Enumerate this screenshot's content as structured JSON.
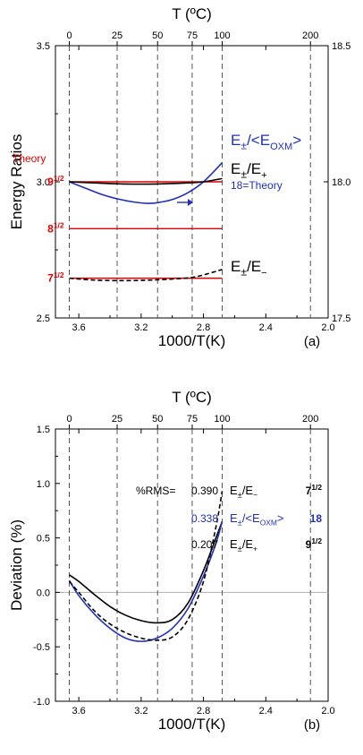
{
  "chart_data": [
    {
      "type": "line",
      "panel_label": "(a)",
      "title": "",
      "xlabel": "1000/T(K)",
      "ylabel": "Energy Ratios",
      "top_axis_label": "T (ºC)",
      "xlim": [
        3.75,
        2.0
      ],
      "ylim": [
        2.5,
        3.5
      ],
      "y2lim": [
        17.5,
        18.5
      ],
      "x_ticks": [
        "3.6",
        "3.2",
        "2.8",
        "2.4",
        "2.0"
      ],
      "y_ticks": [
        "2.5",
        "3.0",
        "3.5"
      ],
      "y2_ticks": [
        "17.5",
        "18.0",
        "18.5"
      ],
      "top_ticks": [
        "0",
        "25",
        "50",
        "75",
        "100",
        "200"
      ],
      "dashed_temperature_lines_C": [
        0,
        25,
        50,
        75,
        100,
        200
      ],
      "theory_lines": [
        {
          "label": "9",
          "exp": "1/2",
          "y": 3.0,
          "color": "#e00000"
        },
        {
          "label": "8",
          "exp": "1/2",
          "y": 2.828,
          "color": "#e00000"
        },
        {
          "label": "7",
          "exp": "1/2",
          "y": 2.646,
          "color": "#e00000"
        }
      ],
      "annotations": [
        {
          "text": "Theory",
          "color": "#e00000"
        },
        {
          "text": "18=Theory",
          "color": "#1f2fbf"
        }
      ],
      "series": [
        {
          "name": "E±/<EOXM>",
          "color": "#1f2fbf",
          "dash": "solid",
          "axis": "right",
          "x": [
            3.661,
            3.55,
            3.45,
            3.35,
            3.25,
            3.16,
            3.1,
            3.0,
            2.9,
            2.8,
            2.68
          ],
          "y": [
            18.0,
            17.975,
            17.953,
            17.937,
            17.926,
            17.921,
            17.923,
            17.935,
            17.96,
            18.0,
            18.07
          ]
        },
        {
          "name": "E±/E+",
          "color": "#000000",
          "dash": "solid",
          "axis": "left",
          "x": [
            3.661,
            3.5,
            3.3,
            3.1,
            2.9,
            2.8,
            2.68
          ],
          "y": [
            3.0,
            2.996,
            2.992,
            2.992,
            2.996,
            3.0,
            3.012
          ]
        },
        {
          "name": "E±/E−",
          "color": "#000000",
          "dash": "dashed",
          "axis": "left",
          "x": [
            3.661,
            3.5,
            3.3,
            3.1,
            2.9,
            2.8,
            2.68
          ],
          "y": [
            2.646,
            2.639,
            2.637,
            2.64,
            2.647,
            2.658,
            2.678
          ]
        }
      ],
      "legend_labels": {
        "eoxm": {
          "base": "E",
          "pm": "±",
          "rest": "/<E",
          "sub": "OXM",
          "end": ">"
        },
        "eplus": {
          "base": "E",
          "pm": "±",
          "rest": "/E",
          "sub": "+"
        },
        "eminus": {
          "base": "E",
          "pm": "±",
          "rest": "/E",
          "sub": "−"
        }
      }
    },
    {
      "type": "line",
      "panel_label": "(b)",
      "title": "",
      "xlabel": "1000/T(K)",
      "ylabel": "Deviation (%)",
      "top_axis_label": "T (ºC)",
      "xlim": [
        3.75,
        2.0
      ],
      "ylim": [
        -1.0,
        1.5
      ],
      "x_ticks": [
        "3.6",
        "3.2",
        "2.8",
        "2.4",
        "2.0"
      ],
      "y_ticks": [
        "-1.0",
        "-0.5",
        "0.0",
        "0.5",
        "1.0",
        "1.5"
      ],
      "top_ticks": [
        "0",
        "25",
        "50",
        "75",
        "100",
        "200"
      ],
      "dashed_temperature_lines_C": [
        0,
        25,
        50,
        75,
        100,
        200
      ],
      "rms_label": "%RMS=",
      "rms_values": [
        {
          "value": "0.390",
          "series": "E±/E−",
          "theory": "7",
          "exp": "1/2",
          "color": "#000000"
        },
        {
          "value": "0.338",
          "series": "E±/<EOXM>",
          "theory": "18",
          "exp": "",
          "color": "#1f2fbf"
        },
        {
          "value": "0.207",
          "series": "E±/E+",
          "theory": "9",
          "exp": "1/2",
          "color": "#000000"
        }
      ],
      "series": [
        {
          "name": "E±/E+",
          "color": "#000000",
          "dash": "solid",
          "x": [
            3.661,
            3.6,
            3.5,
            3.4,
            3.3,
            3.2,
            3.1,
            3.0,
            2.9,
            2.8,
            2.72,
            2.68
          ],
          "y": [
            0.16,
            0.1,
            -0.02,
            -0.13,
            -0.21,
            -0.26,
            -0.28,
            -0.25,
            -0.1,
            0.2,
            0.5,
            0.65
          ]
        },
        {
          "name": "E±/<EOXM>",
          "color": "#1f2fbf",
          "dash": "solid",
          "x": [
            3.661,
            3.6,
            3.5,
            3.4,
            3.3,
            3.2,
            3.1,
            3.0,
            2.9,
            2.8,
            2.72,
            2.68
          ],
          "y": [
            0.11,
            -0.03,
            -0.2,
            -0.33,
            -0.42,
            -0.45,
            -0.42,
            -0.33,
            -0.15,
            0.15,
            0.45,
            0.65
          ]
        },
        {
          "name": "E±/E−",
          "color": "#000000",
          "dash": "dashed",
          "x": [
            3.661,
            3.6,
            3.5,
            3.4,
            3.3,
            3.2,
            3.1,
            3.0,
            2.9,
            2.8,
            2.72,
            2.68
          ],
          "y": [
            0.1,
            0.0,
            -0.17,
            -0.29,
            -0.37,
            -0.42,
            -0.44,
            -0.41,
            -0.25,
            0.1,
            0.6,
            0.93
          ]
        }
      ]
    }
  ]
}
